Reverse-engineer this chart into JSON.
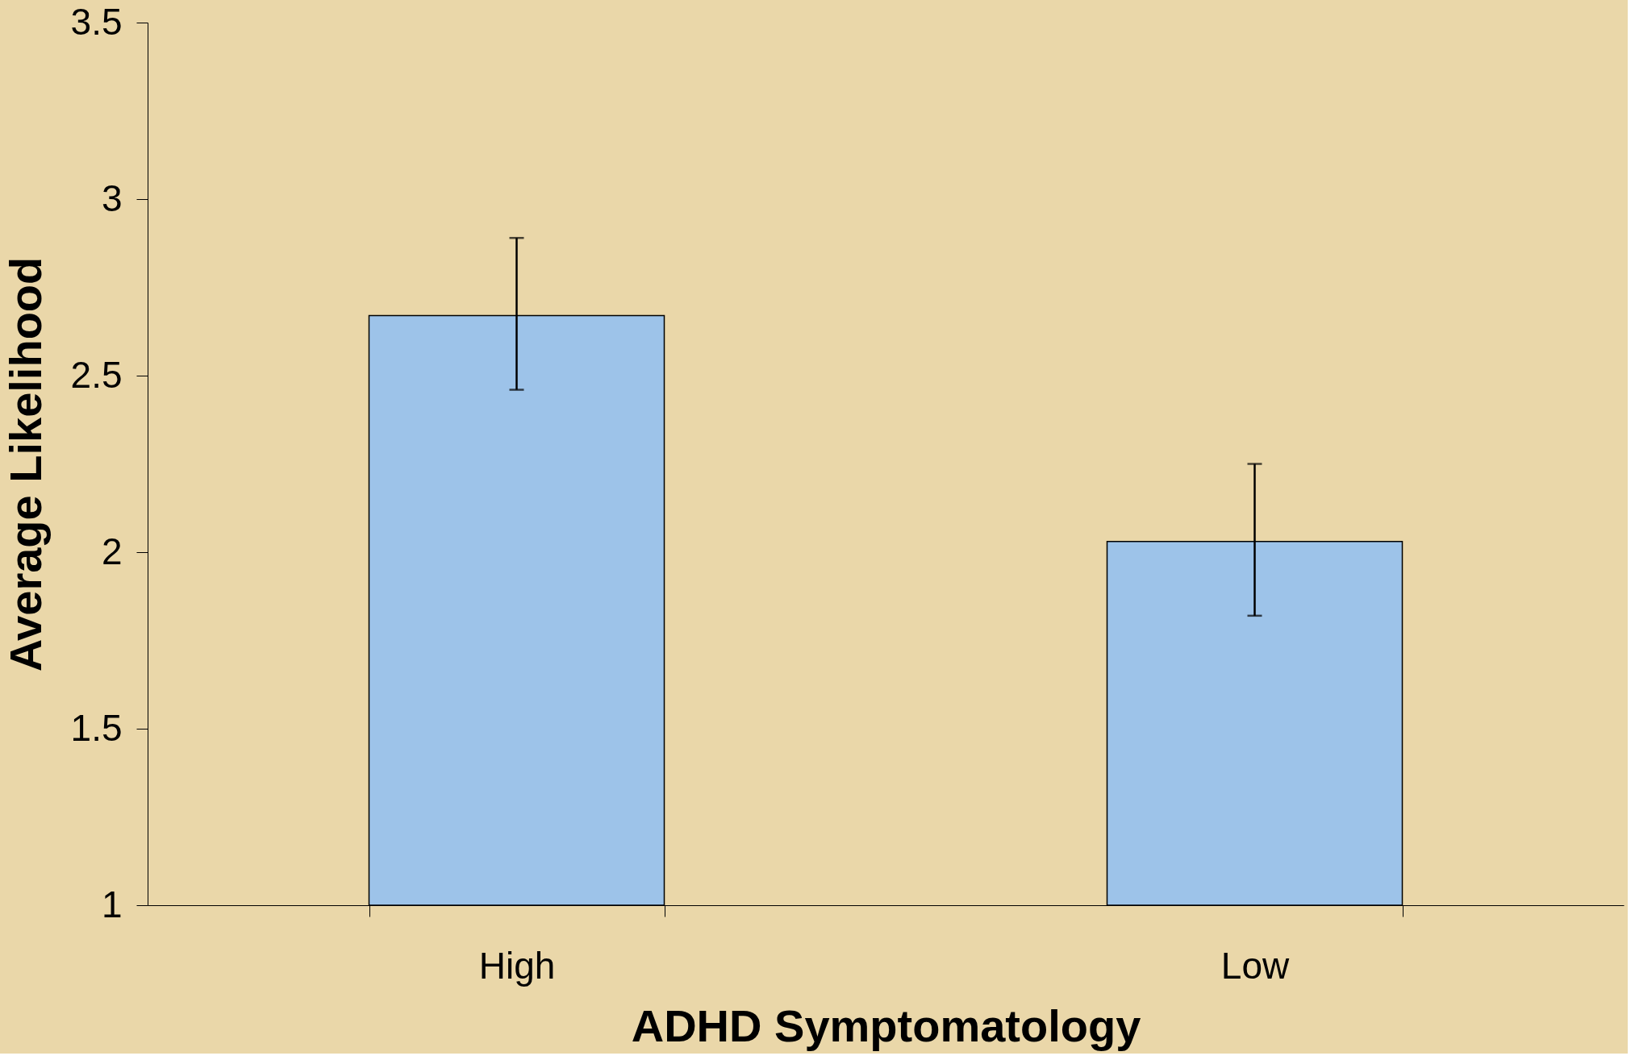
{
  "chart_data": {
    "type": "bar",
    "xlabel": "ADHD Symptomatology",
    "ylabel": "Average Likelihood",
    "categories": [
      "High",
      "Low"
    ],
    "values": [
      2.67,
      2.03
    ],
    "errors": [
      [
        2.46,
        2.89
      ],
      [
        1.82,
        2.25
      ]
    ],
    "color": "#9dc3e9",
    "ylim": [
      1,
      3.5
    ],
    "yticks": [
      1,
      1.5,
      2,
      2.5,
      3,
      3.5
    ],
    "grid": false
  }
}
